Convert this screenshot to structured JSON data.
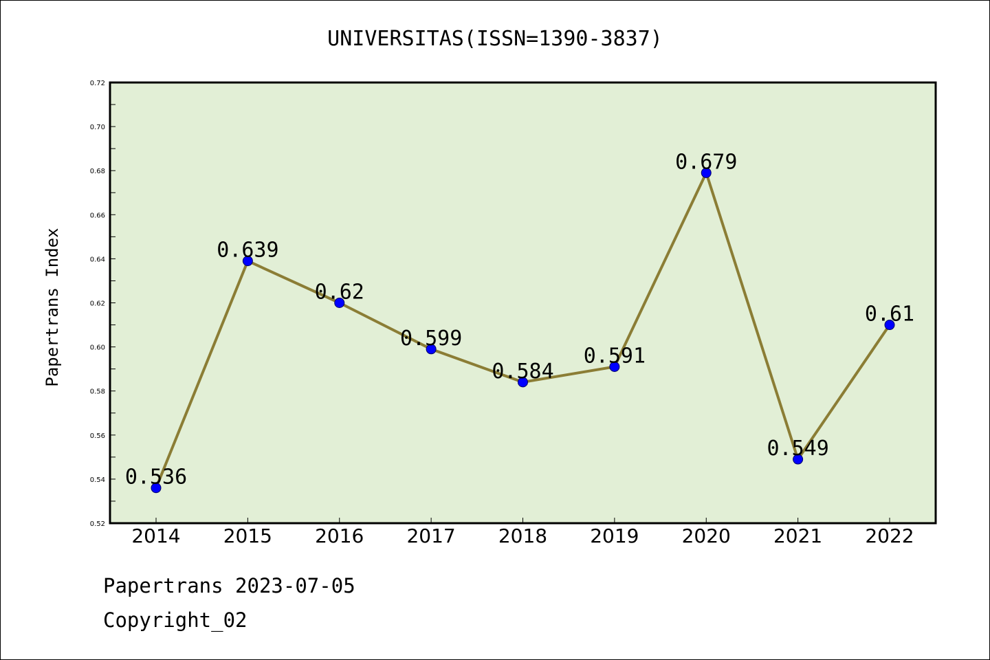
{
  "chart_data": {
    "type": "line",
    "title": "UNIVERSITAS(ISSN=1390-3837)",
    "ylabel": "Papertrans Index",
    "xlabel": "",
    "categories": [
      "2014",
      "2015",
      "2016",
      "2017",
      "2018",
      "2019",
      "2020",
      "2021",
      "2022"
    ],
    "values": [
      0.536,
      0.639,
      0.62,
      0.599,
      0.584,
      0.591,
      0.679,
      0.549,
      0.61
    ],
    "data_labels": [
      "0.536",
      "0.639",
      "0.62",
      "0.599",
      "0.584",
      "0.591",
      "0.679",
      "0.549",
      "0.61"
    ],
    "ylim": [
      0.52,
      0.72
    ],
    "yticks": [
      "0.52",
      "0.54",
      "0.56",
      "0.58",
      "0.60",
      "0.62",
      "0.64",
      "0.66",
      "0.68",
      "0.70",
      "0.72"
    ],
    "grid": false,
    "legend": "none",
    "colors": {
      "plot_background": "#e2efd6",
      "line": "#8b7d35",
      "marker": "#0000ff",
      "axes": "#000000"
    }
  },
  "footer": {
    "line1": "Papertrans 2023-07-05",
    "line2": "Copyright_02"
  }
}
